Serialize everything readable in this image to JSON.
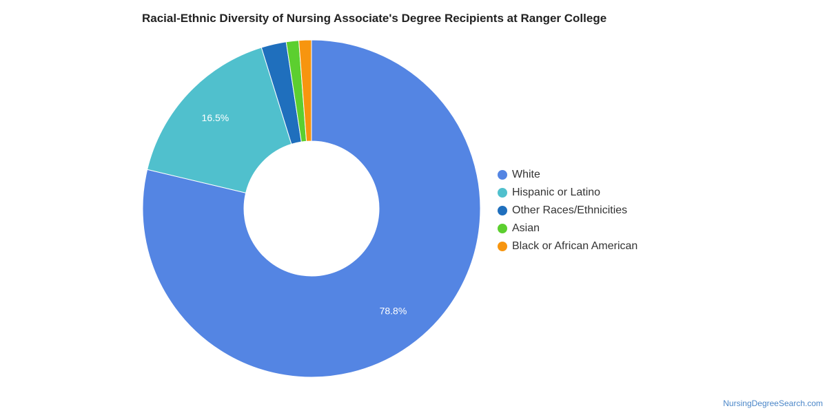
{
  "chart_data": {
    "type": "pie",
    "title": "Racial-Ethnic Diversity of Nursing Associate's Degree Recipients at Ranger College",
    "legend_position": "right",
    "categories": [
      "White",
      "Hispanic or Latino",
      "Other Races/Ethnicities",
      "Asian",
      "Black or African American"
    ],
    "values": [
      78.8,
      16.5,
      2.4,
      1.2,
      1.2
    ],
    "colors": [
      "#5485e3",
      "#50c0cd",
      "#1f6fbd",
      "#5ccf2f",
      "#f7950f"
    ],
    "data_labels": [
      "78.8%",
      "16.5%",
      "",
      "",
      ""
    ]
  },
  "footer": {
    "source": "NursingDegreeSearch.com"
  }
}
